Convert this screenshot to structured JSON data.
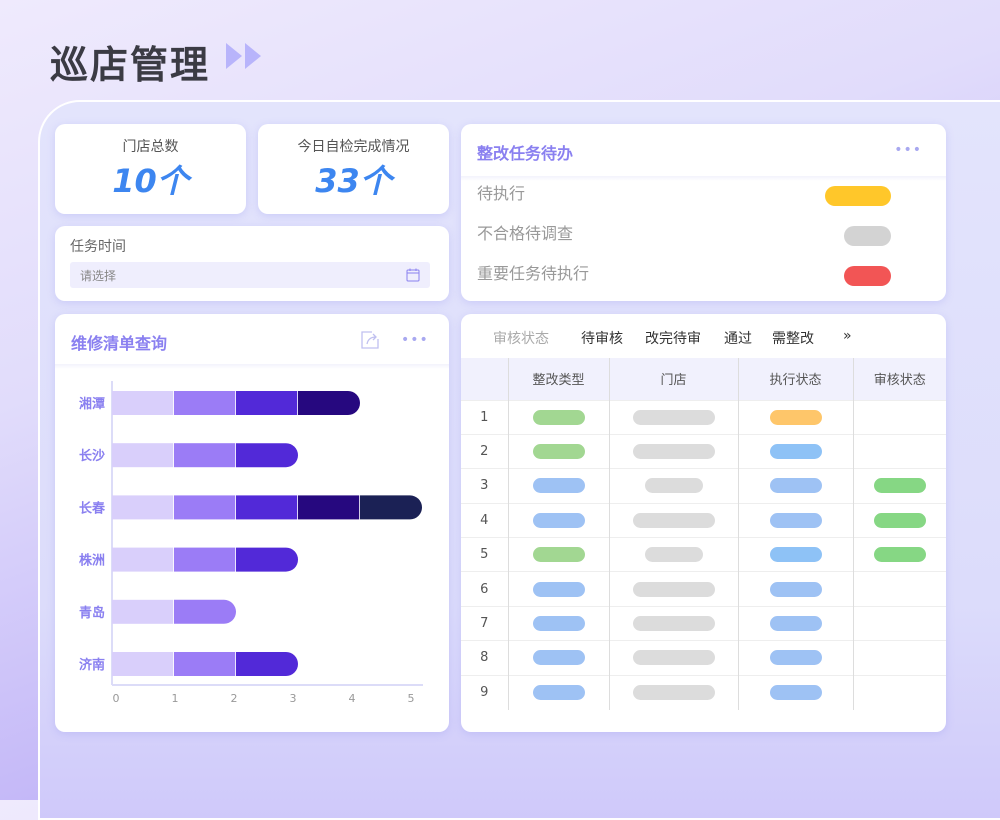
{
  "header": {
    "title": "巡店管理",
    "arrows_icon": "double-play-icon"
  },
  "stats": [
    {
      "label": "门店总数",
      "value": "10个"
    },
    {
      "label": "今日自检完成情况",
      "value": "33个"
    }
  ],
  "task_time": {
    "label": "任务时间",
    "placeholder": "请选择",
    "icon": "calendar-icon"
  },
  "todo": {
    "title": "整改任务待办",
    "more": "•••",
    "items": [
      {
        "label": "待执行",
        "color": "#ffc72a"
      },
      {
        "label": "不合格待调查",
        "color": "#d3d3d3"
      },
      {
        "label": "重要任务待执行",
        "color": "#f25555"
      }
    ]
  },
  "repair": {
    "title": "维修清单查询",
    "more": "•••"
  },
  "chart_data": {
    "type": "bar",
    "orientation": "horizontal",
    "stacked": true,
    "categories": [
      "湘潭",
      "长沙",
      "长春",
      "株洲",
      "青岛",
      "济南"
    ],
    "series": [
      {
        "values": [
          1,
          1,
          1,
          1,
          1,
          1
        ],
        "color": "#d9cffb"
      },
      {
        "values": [
          1,
          1,
          1,
          1,
          1,
          1
        ],
        "color": "#9b7cf6"
      },
      {
        "values": [
          1,
          1,
          1,
          1,
          0,
          1
        ],
        "color": "#5229d8"
      },
      {
        "values": [
          1,
          0,
          1,
          0,
          0,
          0
        ],
        "color": "#26087f"
      },
      {
        "values": [
          0,
          0,
          1,
          0,
          0,
          0
        ],
        "color": "#1b2155"
      }
    ],
    "xticks": [
      "0",
      "1",
      "2",
      "3",
      "4",
      "5"
    ],
    "xlim": [
      0,
      5
    ],
    "grid": false
  },
  "audit": {
    "filter_label": "审核状态",
    "tabs": [
      "待审核",
      "改完待审",
      "通过",
      "需整改"
    ],
    "more": "»",
    "columns": [
      "",
      "整改类型",
      "门店",
      "执行状态",
      "审核状态"
    ],
    "rows": [
      {
        "n": "1",
        "type": "#a2d792",
        "store": "long",
        "exec": "#fec66a",
        "audit": ""
      },
      {
        "n": "2",
        "type": "#a2d792",
        "store": "long",
        "exec": "#8ec2f6",
        "audit": ""
      },
      {
        "n": "3",
        "type": "#9ec2f4",
        "store": "short",
        "exec": "#9ec2f4",
        "audit": "#86d784"
      },
      {
        "n": "4",
        "type": "#9ec2f4",
        "store": "long",
        "exec": "#9ec2f4",
        "audit": "#86d784"
      },
      {
        "n": "5",
        "type": "#a2d792",
        "store": "short",
        "exec": "#8ec2f6",
        "audit": "#86d784"
      },
      {
        "n": "6",
        "type": "#9ec2f4",
        "store": "long",
        "exec": "#9ec2f4",
        "audit": ""
      },
      {
        "n": "7",
        "type": "#9ec2f4",
        "store": "long",
        "exec": "#9ec2f4",
        "audit": ""
      },
      {
        "n": "8",
        "type": "#9ec2f4",
        "store": "long",
        "exec": "#9ec2f4",
        "audit": ""
      },
      {
        "n": "9",
        "type": "#9ec2f4",
        "store": "long",
        "exec": "#9ec2f4",
        "audit": ""
      }
    ]
  }
}
